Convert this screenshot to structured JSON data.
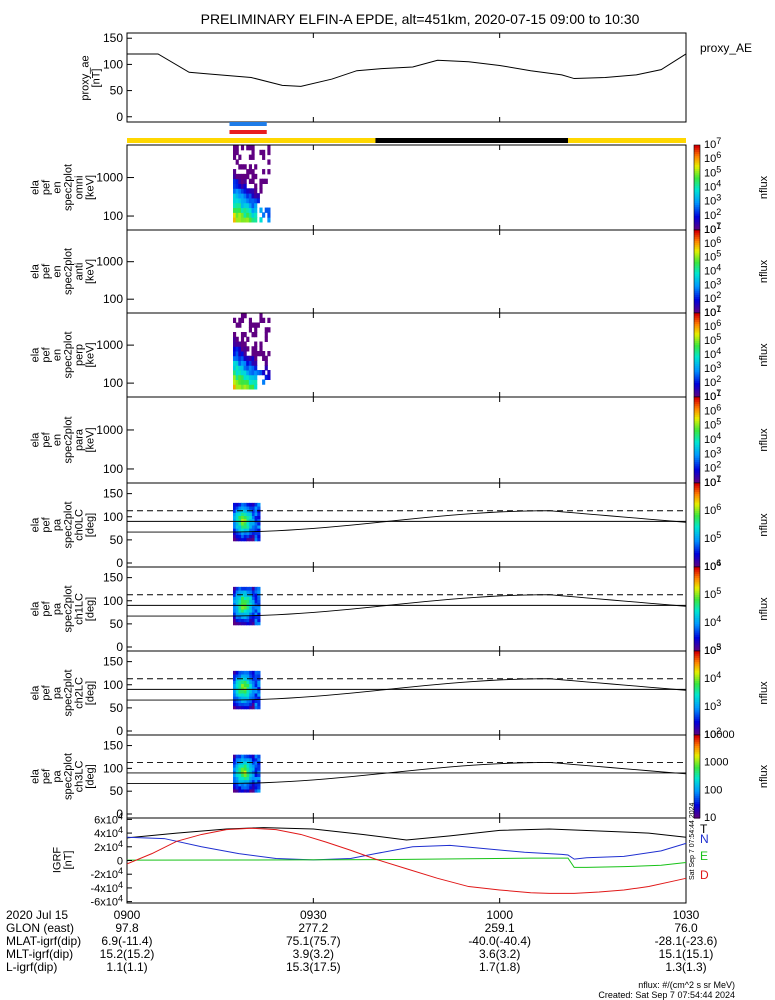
{
  "title": "PRELIMINARY ELFIN-A EPDE, alt=451km, 2020-07-15 09:00 to 10:30",
  "footer": {
    "units_note": "nflux: #/(cm^2 s sr MeV)",
    "created": "Created: Sat Sep  7 07:54:44 2024",
    "side_stamp": "Sat Sep  7 07:54:44 2024"
  },
  "chart_data": [
    {
      "id": "proxy_ae",
      "type": "line",
      "ylabel": "proxy_ae [nT]",
      "legend": "proxy_AE",
      "ylim": [
        -10,
        160
      ],
      "yticks": [
        "0",
        "50",
        "100",
        "150"
      ],
      "x_minutes": [
        0,
        5,
        10,
        13,
        20,
        25,
        28,
        33,
        37,
        41,
        46,
        50,
        55,
        60,
        65,
        70,
        72,
        77,
        82,
        86,
        90
      ],
      "y": [
        120,
        120,
        85,
        82,
        75,
        60,
        58,
        72,
        88,
        92,
        95,
        108,
        105,
        98,
        88,
        80,
        73,
        75,
        80,
        90,
        120
      ],
      "color": "#000000"
    },
    {
      "id": "indicator_bars",
      "type": "bar",
      "segments": [
        {
          "start": 0,
          "end": 40,
          "color": "#ffd700"
        },
        {
          "start": 40,
          "end": 71,
          "color": "#000000"
        },
        {
          "start": 71,
          "end": 90,
          "color": "#ffd700"
        }
      ],
      "science_blue": {
        "start": 16.5,
        "end": 22.5,
        "color": "#1e7ce8"
      },
      "science_red": {
        "start": 16.5,
        "end": 22.5,
        "color": "#e81e1e"
      }
    },
    {
      "id": "spec_omni",
      "type": "heatmap",
      "ylabel": "ela pef en spec2plot omni [keV]",
      "yticks": [
        "100",
        "1000"
      ],
      "zlabel": "nflux",
      "zticks": [
        "10^1",
        "10^2",
        "10^3",
        "10^4",
        "10^5",
        "10^6",
        "10^7"
      ],
      "has_data": true
    },
    {
      "id": "spec_anti",
      "type": "heatmap",
      "ylabel": "ela pef en spec2plot anti [keV]",
      "yticks": [
        "100",
        "1000"
      ],
      "zlabel": "nflux",
      "zticks": [
        "10^1",
        "10^2",
        "10^3",
        "10^4",
        "10^5",
        "10^6",
        "10^7"
      ],
      "has_data": false
    },
    {
      "id": "spec_perp",
      "type": "heatmap",
      "ylabel": "ela pef en spec2plot perp [keV]",
      "yticks": [
        "100",
        "1000"
      ],
      "zlabel": "nflux",
      "zticks": [
        "10^1",
        "10^2",
        "10^3",
        "10^4",
        "10^5",
        "10^6",
        "10^7"
      ],
      "has_data": true
    },
    {
      "id": "spec_para",
      "type": "heatmap",
      "ylabel": "ela pef en spec2plot para [keV]",
      "yticks": [
        "100",
        "1000"
      ],
      "zlabel": "nflux",
      "zticks": [
        "10^1",
        "10^2",
        "10^3",
        "10^4",
        "10^5",
        "10^6",
        "10^7"
      ],
      "has_data": false
    },
    {
      "id": "pa_ch0",
      "type": "heatmap",
      "ylabel": "ela pef pa spec2plot ch0LC [deg]",
      "yticks": [
        "0",
        "50",
        "100",
        "150"
      ],
      "zlabel": "nflux",
      "zticks": [
        "10^4",
        "10^5",
        "10^6",
        "10^7"
      ]
    },
    {
      "id": "pa_ch1",
      "type": "heatmap",
      "ylabel": "ela pef pa spec2plot ch1LC [deg]",
      "yticks": [
        "0",
        "50",
        "100",
        "150"
      ],
      "zlabel": "nflux",
      "zticks": [
        "10^3",
        "10^4",
        "10^5",
        "10^6"
      ]
    },
    {
      "id": "pa_ch2",
      "type": "heatmap",
      "ylabel": "ela pef pa spec2plot ch2LC [deg]",
      "yticks": [
        "0",
        "50",
        "100",
        "150"
      ],
      "zlabel": "nflux",
      "zticks": [
        "10^2",
        "10^3",
        "10^4",
        "10^5"
      ]
    },
    {
      "id": "pa_ch3",
      "type": "heatmap",
      "ylabel": "ela pef pa spec2plot ch3LC [deg]",
      "yticks": [
        "0",
        "50",
        "100",
        "150"
      ],
      "zlabel": "nflux",
      "zticks": [
        "10",
        "100",
        "1000",
        "10000"
      ]
    },
    {
      "id": "igrf",
      "type": "line",
      "ylabel": "IGRF [nT]",
      "yticks": [
        "-6x10^4",
        "-4x10^4",
        "-2x10^4",
        "0",
        "2x10^4",
        "4x10^4",
        "6x10^4"
      ],
      "ylim": [
        -62000,
        62000
      ],
      "series": [
        {
          "name": "T",
          "color": "#000000",
          "x": [
            0,
            8,
            16,
            22,
            30,
            38,
            45,
            52,
            60,
            68,
            76,
            84,
            90
          ],
          "y": [
            33000,
            40000,
            46000,
            48000,
            46000,
            38000,
            30000,
            36000,
            44000,
            46000,
            43000,
            40000,
            34000
          ]
        },
        {
          "name": "N",
          "color": "#1f2fd0",
          "x": [
            0,
            6,
            12,
            18,
            24,
            30,
            36,
            40,
            46,
            52,
            58,
            64,
            70,
            71,
            72,
            74,
            80,
            86,
            90
          ],
          "y": [
            34000,
            32000,
            20000,
            10000,
            3000,
            1000,
            3000,
            10000,
            20000,
            22000,
            17000,
            12000,
            9000,
            8000,
            2000,
            4000,
            6000,
            14000,
            25000
          ]
        },
        {
          "name": "E",
          "color": "#17c217",
          "x": [
            0,
            20,
            40,
            55,
            65,
            70,
            71,
            72,
            74,
            80,
            86,
            90
          ],
          "y": [
            500,
            800,
            1200,
            2500,
            3500,
            3500,
            3500,
            -10000,
            -10000,
            -9000,
            -7000,
            -3000
          ]
        },
        {
          "name": "D",
          "color": "#e01818",
          "x": [
            0,
            4,
            8,
            12,
            16,
            20,
            24,
            28,
            32,
            36,
            40,
            45,
            50,
            55,
            60,
            65,
            68,
            72,
            76,
            80,
            84,
            88,
            90
          ],
          "y": [
            -5000,
            10000,
            28000,
            38000,
            45000,
            47000,
            45000,
            38000,
            27000,
            15000,
            2000,
            -12000,
            -26000,
            -38000,
            -43000,
            -47000,
            -48000,
            -48000,
            -46000,
            -43000,
            -38000,
            -30000,
            -26000
          ]
        }
      ]
    }
  ],
  "xaxis": {
    "ticks": [
      "0900",
      "0930",
      "1000",
      "1030"
    ],
    "rows": [
      {
        "label": "2020 Jul 15",
        "values": [
          "",
          "",
          "",
          ""
        ]
      },
      {
        "label": "GLON (east)",
        "values": [
          "97.8",
          "277.2",
          "259.1",
          "76.0"
        ]
      },
      {
        "label": "MLAT-igrf(dip)",
        "values": [
          "6.9(-11.4)",
          "75.1(75.7)",
          "-40.0(-40.4)",
          "-28.1(-23.6)"
        ]
      },
      {
        "label": "MLT-igrf(dip)",
        "values": [
          "15.2(15.2)",
          "3.9(3.2)",
          "3.6(3.2)",
          "15.1(15.1)"
        ]
      },
      {
        "label": "L-igrf(dip)",
        "values": [
          "1.1(1.1)",
          "15.3(17.5)",
          "1.7(1.8)",
          "1.3(1.3)"
        ]
      }
    ]
  }
}
